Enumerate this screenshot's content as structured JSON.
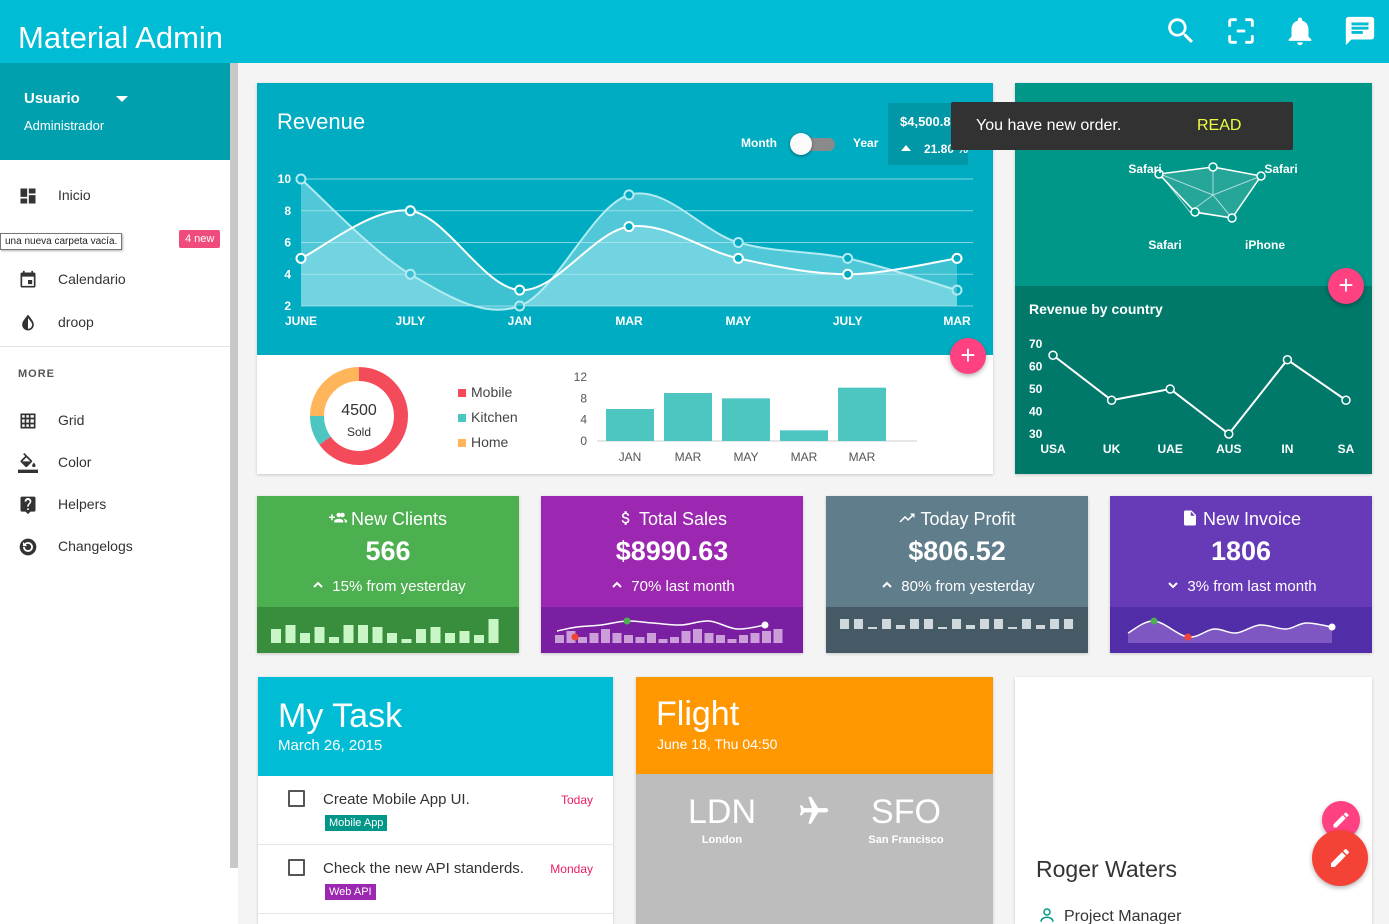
{
  "header": {
    "brand": "Material Admin",
    "icons": [
      "search-icon",
      "fullscreen-icon",
      "bell-icon",
      "chat-icon"
    ],
    "color": "#00bcd4"
  },
  "sidebar": {
    "user": {
      "name": "Usuario",
      "role": "Administrador"
    },
    "tooltip": "una nueva carpeta vacía.",
    "badge": "4 new",
    "items": [
      {
        "label": "Inicio",
        "icon": "dashboard-icon"
      },
      {
        "label": "",
        "icon": "folder-icon"
      },
      {
        "label": "Calendario",
        "icon": "calendar-icon"
      },
      {
        "label": "droop",
        "icon": "droplet-icon"
      }
    ],
    "more_label": "MORE",
    "more_items": [
      {
        "label": "Grid",
        "icon": "grid-icon"
      },
      {
        "label": "Color",
        "icon": "paint-bucket-icon"
      },
      {
        "label": "Helpers",
        "icon": "help-icon"
      },
      {
        "label": "Changelogs",
        "icon": "history-icon"
      }
    ]
  },
  "revenue": {
    "title": "Revenue",
    "toggle_left": "Month",
    "toggle_right": "Year",
    "stat_value": "$4,500.8",
    "stat_percent": "21.80 %"
  },
  "snackbar": {
    "message": "You have new order.",
    "action": "READ"
  },
  "donut": {
    "value": "4500",
    "label": "Sold"
  },
  "radar": {
    "labels": [
      "Safari",
      "Safari",
      "Safari",
      "iPhone"
    ]
  },
  "revenue_by_country": {
    "title": "Revenue by country"
  },
  "stats": [
    {
      "title": "New Clients",
      "value": "566",
      "sub": "15% from yesterday",
      "icon": "group-add-icon",
      "trend": "up",
      "color": "#4caf50",
      "spark_color": "#388e3c"
    },
    {
      "title": "Total Sales",
      "value": "$8990.63",
      "sub": "70% last month",
      "icon": "dollar-icon",
      "trend": "up",
      "color": "#9c27b0",
      "spark_color": "#7b1fa2"
    },
    {
      "title": "Today Profit",
      "value": "$806.52",
      "sub": "80% from yesterday",
      "icon": "trending-up-icon",
      "trend": "up",
      "color": "#607d8b",
      "spark_color": "#455a64"
    },
    {
      "title": "New Invoice",
      "value": "1806",
      "sub": "3% from last month",
      "icon": "document-icon",
      "trend": "down",
      "color": "#673ab7",
      "spark_color": "#512da8"
    }
  ],
  "task": {
    "title": "My Task",
    "date": "March 26, 2015",
    "items": [
      {
        "text": "Create Mobile App UI.",
        "due": "Today",
        "tag": "Mobile App",
        "tag_color": "#009688"
      },
      {
        "text": "Check the new API standerds.",
        "due": "Monday",
        "tag": "Web API",
        "tag_color": "#9c27b0"
      }
    ]
  },
  "flight": {
    "title": "Flight",
    "date": "June 18, Thu 04:50",
    "from_code": "LDN",
    "from_city": "London",
    "to_code": "SFO",
    "to_city": "San Francisco"
  },
  "profile": {
    "name": "Roger Waters",
    "role": "Project Manager"
  },
  "chart_data": [
    {
      "type": "area",
      "categories": [
        "JUNE",
        "JULY",
        "JAN",
        "MAR",
        "MAY",
        "JULY",
        "MAR"
      ],
      "series": [
        {
          "values": [
            10,
            4,
            2,
            9,
            6,
            5,
            3
          ]
        },
        {
          "values": [
            5,
            8,
            3,
            7,
            5,
            4,
            5
          ]
        }
      ],
      "ylim": [
        2,
        10
      ],
      "yticks": [
        2,
        4,
        6,
        8,
        10
      ],
      "grid": true
    },
    {
      "type": "pie",
      "categories": [
        "Mobile",
        "Kitchen",
        "Home"
      ],
      "values": [
        65,
        10,
        25
      ],
      "colors": [
        "#f44b5a",
        "#4dc5c1",
        "#ffb55a"
      ],
      "legend": "right"
    },
    {
      "type": "bar",
      "categories": [
        "JAN",
        "MAR",
        "MAY",
        "MAR",
        "MAR"
      ],
      "values": [
        6,
        9,
        8,
        2,
        10
      ],
      "ylim": [
        0,
        12
      ],
      "yticks": [
        0,
        4,
        8,
        12
      ],
      "color": "#4dc5c1"
    },
    {
      "type": "radar",
      "categories": [
        "Safari",
        "Safari",
        "Safari",
        "iPhone"
      ]
    },
    {
      "type": "line",
      "categories": [
        "USA",
        "UK",
        "UAE",
        "AUS",
        "IN",
        "SA"
      ],
      "values": [
        65,
        45,
        50,
        30,
        63,
        45
      ],
      "ylim": [
        30,
        70
      ],
      "yticks": [
        30,
        40,
        50,
        60,
        70
      ]
    }
  ]
}
